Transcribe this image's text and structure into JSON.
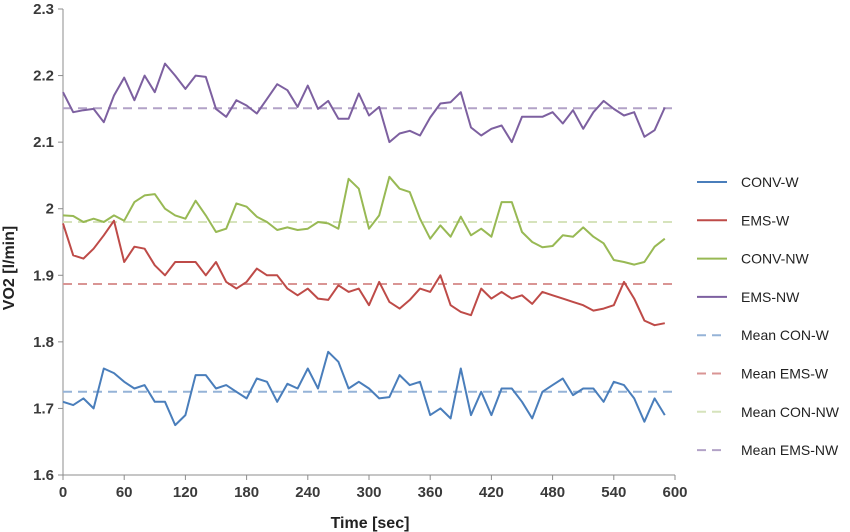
{
  "chart_data": {
    "type": "line",
    "title": "",
    "xlabel": "Time [sec]",
    "ylabel": "VO2 [l/min]",
    "xlim": [
      0,
      600
    ],
    "ylim": [
      1.6,
      2.3
    ],
    "x_ticks": [
      "0",
      "60",
      "120",
      "180",
      "240",
      "300",
      "360",
      "420",
      "480",
      "540",
      "600"
    ],
    "y_ticks": [
      "1.6",
      "1.7",
      "1.8",
      "1.9",
      "2",
      "2.1",
      "2.2",
      "2.3"
    ],
    "grid": false,
    "legend_position": "right",
    "x": [
      0,
      10,
      20,
      30,
      40,
      50,
      60,
      70,
      80,
      90,
      100,
      110,
      120,
      130,
      140,
      150,
      160,
      170,
      180,
      190,
      200,
      210,
      220,
      230,
      240,
      250,
      260,
      270,
      280,
      290,
      300,
      310,
      320,
      330,
      340,
      350,
      360,
      370,
      380,
      390,
      400,
      410,
      420,
      430,
      440,
      450,
      460,
      470,
      480,
      490,
      500,
      510,
      520,
      530,
      540,
      550,
      560,
      570,
      580,
      590
    ],
    "series": [
      {
        "name": "CONV-W",
        "color": "#4a7ebb",
        "dashed": false,
        "values": [
          1.71,
          1.705,
          1.715,
          1.7,
          1.76,
          1.753,
          1.74,
          1.73,
          1.735,
          1.71,
          1.71,
          1.675,
          1.69,
          1.75,
          1.75,
          1.73,
          1.735,
          1.725,
          1.715,
          1.745,
          1.74,
          1.71,
          1.737,
          1.73,
          1.76,
          1.73,
          1.785,
          1.77,
          1.73,
          1.74,
          1.73,
          1.715,
          1.717,
          1.75,
          1.735,
          1.74,
          1.69,
          1.7,
          1.685,
          1.76,
          1.69,
          1.725,
          1.69,
          1.73,
          1.73,
          1.71,
          1.685,
          1.725,
          1.735,
          1.745,
          1.72,
          1.73,
          1.73,
          1.71,
          1.74,
          1.735,
          1.715,
          1.68,
          1.715,
          1.69
        ]
      },
      {
        "name": "EMS-W",
        "color": "#be4b48",
        "dashed": false,
        "values": [
          1.978,
          1.93,
          1.925,
          1.94,
          1.96,
          1.982,
          1.92,
          1.943,
          1.94,
          1.915,
          1.9,
          1.92,
          1.92,
          1.92,
          1.9,
          1.92,
          1.89,
          1.88,
          1.89,
          1.91,
          1.9,
          1.9,
          1.88,
          1.87,
          1.88,
          1.865,
          1.863,
          1.885,
          1.875,
          1.88,
          1.855,
          1.89,
          1.86,
          1.85,
          1.863,
          1.88,
          1.875,
          1.9,
          1.855,
          1.845,
          1.84,
          1.88,
          1.865,
          1.875,
          1.865,
          1.87,
          1.857,
          1.875,
          1.87,
          1.865,
          1.86,
          1.855,
          1.847,
          1.85,
          1.855,
          1.89,
          1.865,
          1.832,
          1.825,
          1.828
        ]
      },
      {
        "name": "CONV-NW",
        "color": "#98b954",
        "dashed": false,
        "values": [
          1.99,
          1.989,
          1.98,
          1.985,
          1.98,
          1.99,
          1.982,
          2.01,
          2.02,
          2.022,
          2.0,
          1.99,
          1.985,
          2.012,
          1.99,
          1.965,
          1.97,
          2.008,
          2.003,
          1.988,
          1.98,
          1.968,
          1.972,
          1.968,
          1.97,
          1.98,
          1.978,
          1.97,
          2.045,
          2.03,
          1.97,
          1.99,
          2.048,
          2.03,
          2.025,
          1.985,
          1.955,
          1.975,
          1.958,
          1.988,
          1.96,
          1.97,
          1.958,
          2.01,
          2.01,
          1.965,
          1.95,
          1.942,
          1.944,
          1.96,
          1.958,
          1.972,
          1.958,
          1.948,
          1.923,
          1.92,
          1.916,
          1.92,
          1.943,
          1.955
        ]
      },
      {
        "name": "EMS-NW",
        "color": "#7d60a0",
        "dashed": false,
        "values": [
          2.175,
          2.145,
          2.148,
          2.15,
          2.13,
          2.17,
          2.197,
          2.163,
          2.2,
          2.175,
          2.218,
          2.2,
          2.18,
          2.2,
          2.198,
          2.15,
          2.138,
          2.163,
          2.155,
          2.143,
          2.165,
          2.187,
          2.178,
          2.153,
          2.185,
          2.15,
          2.162,
          2.135,
          2.135,
          2.173,
          2.14,
          2.153,
          2.1,
          2.113,
          2.117,
          2.11,
          2.137,
          2.158,
          2.16,
          2.175,
          2.122,
          2.11,
          2.12,
          2.125,
          2.1,
          2.138,
          2.138,
          2.138,
          2.145,
          2.128,
          2.148,
          2.12,
          2.145,
          2.162,
          2.15,
          2.14,
          2.145,
          2.108,
          2.118,
          2.152
        ]
      },
      {
        "name": "Mean CON-W",
        "color": "#95b3d7",
        "dashed": true,
        "value": 1.725
      },
      {
        "name": "Mean EMS-W",
        "color": "#d99594",
        "dashed": true,
        "value": 1.887
      },
      {
        "name": "Mean CON-NW",
        "color": "#d6e3bc",
        "dashed": true,
        "value": 1.98
      },
      {
        "name": "Mean EMS-NW",
        "color": "#b2a2c7",
        "dashed": true,
        "value": 2.151
      }
    ]
  }
}
